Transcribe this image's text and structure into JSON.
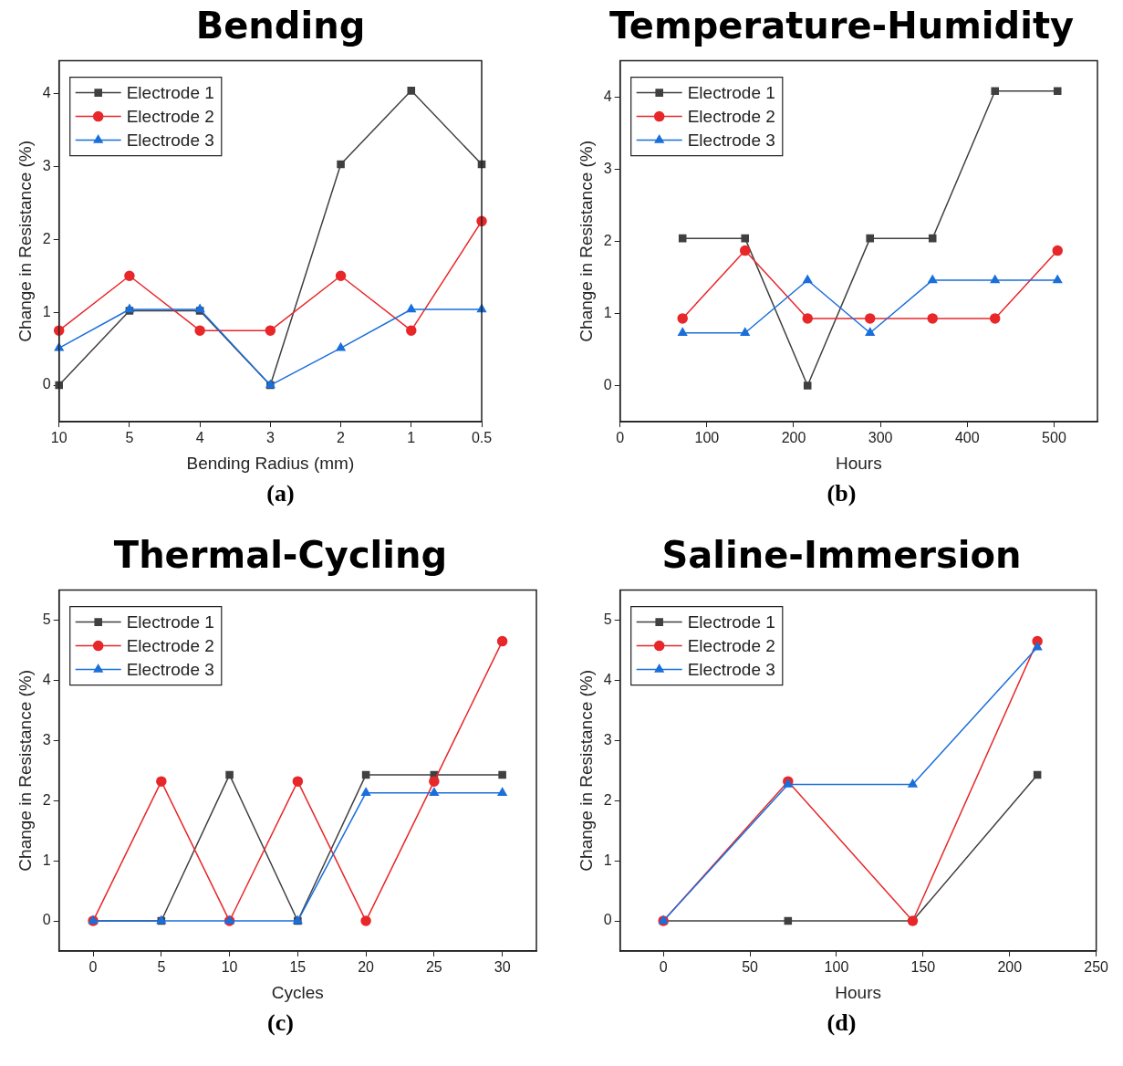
{
  "chart_data": [
    {
      "type": "line",
      "title": "Bending",
      "xlabel": "Bending Radius (mm)",
      "ylabel": "Change in Resistance (%)",
      "annotations": [
        "(a)"
      ],
      "categories": [
        "10",
        "5",
        "4",
        "3",
        "2",
        "1",
        "0.5"
      ],
      "ylim": [
        -0.5,
        4.45
      ],
      "yticks": [
        0,
        1,
        2,
        3,
        4
      ],
      "grid": false,
      "legend": "top left",
      "series": [
        {
          "name": "Electrode 1",
          "color": "#404040",
          "marker": "square",
          "values": [
            0,
            1.02,
            1.02,
            0,
            3.03,
            4.04,
            3.03
          ]
        },
        {
          "name": "Electrode 2",
          "color": "#e8272a",
          "marker": "circle",
          "values": [
            0.75,
            1.5,
            0.75,
            0.75,
            1.5,
            0.75,
            2.25
          ]
        },
        {
          "name": "Electrode 3",
          "color": "#1a6fdb",
          "marker": "triangle",
          "values": [
            0.51,
            1.04,
            1.04,
            0,
            0.51,
            1.04,
            1.04
          ]
        }
      ]
    },
    {
      "type": "line",
      "title": "Temperature-Humidity",
      "xlabel": "Hours",
      "ylabel": "Change in Resistance (%)",
      "annotations": [
        "(b)"
      ],
      "x": [
        72,
        144,
        216,
        288,
        360,
        432,
        504
      ],
      "xlim": [
        0,
        550
      ],
      "xticks": [
        0,
        100,
        200,
        300,
        400,
        500
      ],
      "ylim": [
        -0.5,
        4.5
      ],
      "yticks": [
        0,
        1,
        2,
        3,
        4
      ],
      "grid": false,
      "legend": "top left",
      "series": [
        {
          "name": "Electrode 1",
          "color": "#404040",
          "marker": "square",
          "values": [
            2.04,
            2.04,
            0,
            2.04,
            2.04,
            4.08,
            4.08
          ]
        },
        {
          "name": "Electrode 2",
          "color": "#e8272a",
          "marker": "circle",
          "values": [
            0.93,
            1.87,
            0.93,
            0.93,
            0.93,
            0.93,
            1.87
          ]
        },
        {
          "name": "Electrode 3",
          "color": "#1a6fdb",
          "marker": "triangle",
          "values": [
            0.73,
            0.73,
            1.46,
            0.73,
            1.46,
            1.46,
            1.46
          ]
        }
      ]
    },
    {
      "type": "line",
      "title": "Thermal-Cycling",
      "xlabel": "Cycles",
      "ylabel": "Change in Resistance (%)",
      "annotations": [
        "(c)"
      ],
      "x": [
        0,
        5,
        10,
        15,
        20,
        25,
        30
      ],
      "xlim": [
        -2.5,
        32.5
      ],
      "xticks": [
        0,
        5,
        10,
        15,
        20,
        25,
        30
      ],
      "ylim": [
        -0.5,
        5.5
      ],
      "yticks": [
        0,
        1,
        2,
        3,
        4,
        5
      ],
      "grid": false,
      "legend": "top left",
      "series": [
        {
          "name": "Electrode 1",
          "color": "#404040",
          "marker": "square",
          "values": [
            0,
            0,
            2.43,
            0,
            2.43,
            2.43,
            2.43
          ]
        },
        {
          "name": "Electrode 2",
          "color": "#e8272a",
          "marker": "circle",
          "values": [
            0,
            2.32,
            0,
            2.32,
            0,
            2.32,
            4.65
          ]
        },
        {
          "name": "Electrode 3",
          "color": "#1a6fdb",
          "marker": "triangle",
          "values": [
            0,
            0,
            0,
            0,
            2.13,
            2.13,
            2.13
          ]
        }
      ]
    },
    {
      "type": "line",
      "title": "Saline-Immersion",
      "xlabel": "Hours",
      "ylabel": "Change in Resistance (%)",
      "annotations": [
        "(d)"
      ],
      "x": [
        0,
        72,
        144,
        216
      ],
      "xlim": [
        -25,
        250
      ],
      "xticks": [
        0,
        50,
        100,
        150,
        200,
        250
      ],
      "ylim": [
        -0.5,
        5.5
      ],
      "yticks": [
        0,
        1,
        2,
        3,
        4,
        5
      ],
      "grid": false,
      "legend": "top left",
      "series": [
        {
          "name": "Electrode 1",
          "color": "#404040",
          "marker": "square",
          "values": [
            0,
            0,
            0,
            2.43
          ]
        },
        {
          "name": "Electrode 2",
          "color": "#e8272a",
          "marker": "circle",
          "values": [
            0,
            2.32,
            0,
            4.65
          ]
        },
        {
          "name": "Electrode 3",
          "color": "#1a6fdb",
          "marker": "triangle",
          "values": [
            0,
            2.27,
            2.27,
            4.55
          ]
        }
      ]
    }
  ]
}
